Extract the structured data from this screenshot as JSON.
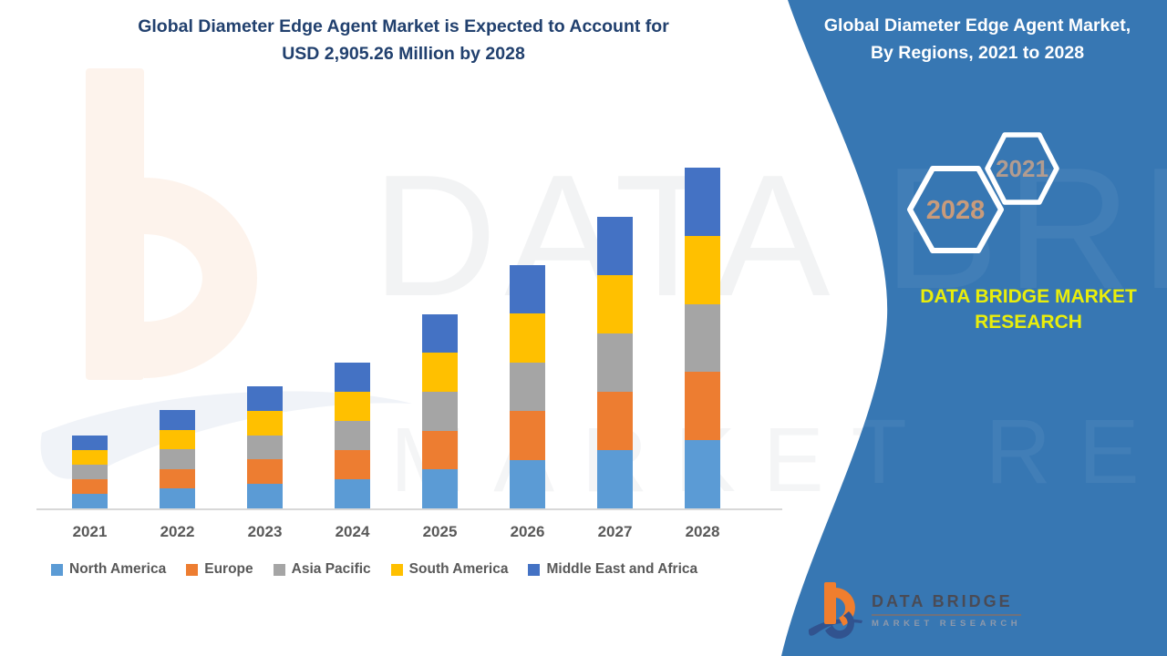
{
  "left_section": {
    "title_line1": "Global Diameter Edge Agent Market is Expected to Account for",
    "title_line2": "USD 2,905.26 Million by 2028",
    "title_color": "#21406E"
  },
  "chart_data": {
    "type": "bar",
    "stacked": true,
    "title": "Global Diameter Edge Agent Market is Expected to Account for USD 2,905.26 Million by 2028",
    "unit": "USD Million",
    "categories": [
      "2021",
      "2022",
      "2023",
      "2024",
      "2025",
      "2026",
      "2027",
      "2028"
    ],
    "series": [
      {
        "name": "North America",
        "color": "#5B9BD5",
        "values": [
          124,
          168,
          208,
          249,
          332,
          415,
          497,
          581.06
        ]
      },
      {
        "name": "Europe",
        "color": "#ED7D31",
        "values": [
          124,
          168,
          208,
          249,
          332,
          415,
          497,
          581.05
        ]
      },
      {
        "name": "Asia Pacific",
        "color": "#A5A5A5",
        "values": [
          124,
          168,
          208,
          249,
          332,
          415,
          497,
          581.05
        ]
      },
      {
        "name": "South America",
        "color": "#FFC000",
        "values": [
          124,
          168,
          208,
          249,
          332,
          415,
          497,
          581.05
        ]
      },
      {
        "name": "Middle East and Africa",
        "color": "#4472C4",
        "values": [
          124,
          168,
          208,
          249,
          332,
          415,
          497,
          581.05
        ]
      }
    ],
    "totals_estimated": [
      620,
      840,
      1040,
      1245,
      1660,
      2075,
      2485,
      2905.26
    ],
    "ylim": [
      0,
      2905.26
    ],
    "gridlines": false,
    "y_axis_visible": false,
    "legend_position": "bottom"
  },
  "right_panel": {
    "background_color": "#3777B3",
    "title_line1": "Global Diameter Edge Agent Market,",
    "title_line2": "By Regions, 2021 to 2028",
    "hexagon_top": {
      "label": "2021",
      "text_color": "#B29C90"
    },
    "hexagon_bottom": {
      "label": "2028",
      "text_color": "#C99B7B"
    },
    "brand_line1": "DATA BRIDGE MARKET",
    "brand_line2": "RESEARCH",
    "brand_text_color": "#E9EE0B"
  },
  "logo": {
    "name": "DATA BRIDGE",
    "subtitle": "MARKET RESEARCH"
  },
  "watermark": {
    "line1": "DATA BRIDGE",
    "line2": "MARKET RESEARCH"
  }
}
